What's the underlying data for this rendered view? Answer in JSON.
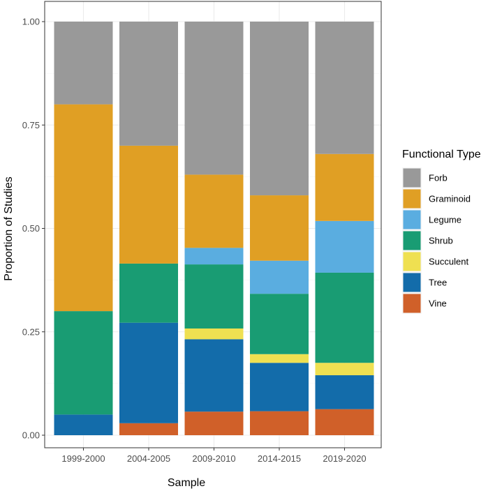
{
  "chart_data": {
    "type": "bar",
    "stacked": true,
    "title": "",
    "xlabel": "Sample",
    "ylabel": "Proportion of Studies",
    "ylim": [
      0,
      1
    ],
    "yticks": [
      "0.00",
      "0.25",
      "0.50",
      "0.75",
      "1.00"
    ],
    "grid": true,
    "legend_title": "Functional Type",
    "legend_position": "right",
    "categories": [
      "1999-2000",
      "2004-2005",
      "2009-2010",
      "2014-2015",
      "2019-2020"
    ],
    "series": [
      {
        "name": "Forb",
        "color": "#999999",
        "values": [
          0.2,
          0.3,
          0.37,
          0.42,
          0.32
        ]
      },
      {
        "name": "Graminoid",
        "color": "#E09F24",
        "values": [
          0.5,
          0.285,
          0.177,
          0.158,
          0.162
        ]
      },
      {
        "name": "Legume",
        "color": "#5AADE0",
        "values": [
          0.0,
          0.0,
          0.04,
          0.08,
          0.125
        ]
      },
      {
        "name": "Shrub",
        "color": "#199C73",
        "values": [
          0.25,
          0.143,
          0.155,
          0.146,
          0.218
        ]
      },
      {
        "name": "Succulent",
        "color": "#EFE051",
        "values": [
          0.0,
          0.0,
          0.026,
          0.021,
          0.03
        ]
      },
      {
        "name": "Tree",
        "color": "#136CAA",
        "values": [
          0.05,
          0.243,
          0.175,
          0.117,
          0.082
        ]
      },
      {
        "name": "Vine",
        "color": "#D06029",
        "values": [
          0.0,
          0.029,
          0.057,
          0.058,
          0.063
        ]
      }
    ]
  }
}
